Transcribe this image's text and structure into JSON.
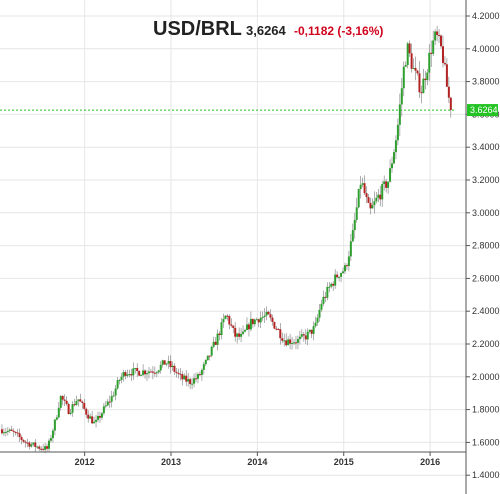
{
  "header": {
    "symbol": "USD/BRL",
    "price": "3,6264",
    "change": "-0,1182 (-3,16%)",
    "change_color": "#d0021b"
  },
  "chart_data": {
    "type": "candlestick",
    "title": "USD/BRL",
    "xlabel": "",
    "ylabel": "",
    "ylim": [
      1.4,
      4.25
    ],
    "y_ticks": [
      "1.4000",
      "1.6000",
      "1.8000",
      "2.0000",
      "2.2000",
      "2.4000",
      "2.6000",
      "2.8000",
      "3.0000",
      "3.2000",
      "3.4000",
      "3.6000",
      "3.8000",
      "4.0000",
      "4.2000"
    ],
    "x_ticks": [
      "2012",
      "2013",
      "2014",
      "2015",
      "2016"
    ],
    "last_value": 3.6264,
    "last_value_label": "3.6264",
    "last_value_color": "#22c322",
    "up_color": "#2e9e2e",
    "down_color": "#b22222",
    "grid": true,
    "approx_close_path": [
      {
        "t": 2011.0,
        "y": 1.68
      },
      {
        "t": 2011.15,
        "y": 1.66
      },
      {
        "t": 2011.3,
        "y": 1.6
      },
      {
        "t": 2011.45,
        "y": 1.57
      },
      {
        "t": 2011.55,
        "y": 1.56
      },
      {
        "t": 2011.65,
        "y": 1.75
      },
      {
        "t": 2011.7,
        "y": 1.88
      },
      {
        "t": 2011.8,
        "y": 1.79
      },
      {
        "t": 2011.9,
        "y": 1.87
      },
      {
        "t": 2012.0,
        "y": 1.78
      },
      {
        "t": 2012.1,
        "y": 1.71
      },
      {
        "t": 2012.2,
        "y": 1.8
      },
      {
        "t": 2012.3,
        "y": 1.88
      },
      {
        "t": 2012.38,
        "y": 1.98
      },
      {
        "t": 2012.45,
        "y": 2.03
      },
      {
        "t": 2012.6,
        "y": 2.03
      },
      {
        "t": 2012.8,
        "y": 2.04
      },
      {
        "t": 2012.92,
        "y": 2.09
      },
      {
        "t": 2013.0,
        "y": 2.05
      },
      {
        "t": 2013.1,
        "y": 1.99
      },
      {
        "t": 2013.2,
        "y": 1.97
      },
      {
        "t": 2013.3,
        "y": 2.0
      },
      {
        "t": 2013.4,
        "y": 2.1
      },
      {
        "t": 2013.5,
        "y": 2.22
      },
      {
        "t": 2013.62,
        "y": 2.38
      },
      {
        "t": 2013.72,
        "y": 2.25
      },
      {
        "t": 2013.8,
        "y": 2.24
      },
      {
        "t": 2013.9,
        "y": 2.33
      },
      {
        "t": 2014.0,
        "y": 2.36
      },
      {
        "t": 2014.1,
        "y": 2.37
      },
      {
        "t": 2014.2,
        "y": 2.3
      },
      {
        "t": 2014.3,
        "y": 2.22
      },
      {
        "t": 2014.45,
        "y": 2.22
      },
      {
        "t": 2014.55,
        "y": 2.25
      },
      {
        "t": 2014.65,
        "y": 2.3
      },
      {
        "t": 2014.72,
        "y": 2.45
      },
      {
        "t": 2014.82,
        "y": 2.55
      },
      {
        "t": 2014.92,
        "y": 2.63
      },
      {
        "t": 2015.0,
        "y": 2.66
      },
      {
        "t": 2015.08,
        "y": 2.85
      },
      {
        "t": 2015.18,
        "y": 3.2
      },
      {
        "t": 2015.28,
        "y": 3.0
      },
      {
        "t": 2015.38,
        "y": 3.1
      },
      {
        "t": 2015.5,
        "y": 3.2
      },
      {
        "t": 2015.6,
        "y": 3.5
      },
      {
        "t": 2015.68,
        "y": 3.9
      },
      {
        "t": 2015.72,
        "y": 4.0
      },
      {
        "t": 2015.8,
        "y": 3.85
      },
      {
        "t": 2015.88,
        "y": 3.75
      },
      {
        "t": 2015.95,
        "y": 3.9
      },
      {
        "t": 2016.0,
        "y": 4.02
      },
      {
        "t": 2016.05,
        "y": 4.08
      },
      {
        "t": 2016.12,
        "y": 3.98
      },
      {
        "t": 2016.18,
        "y": 3.75
      },
      {
        "t": 2016.22,
        "y": 3.63
      }
    ]
  }
}
